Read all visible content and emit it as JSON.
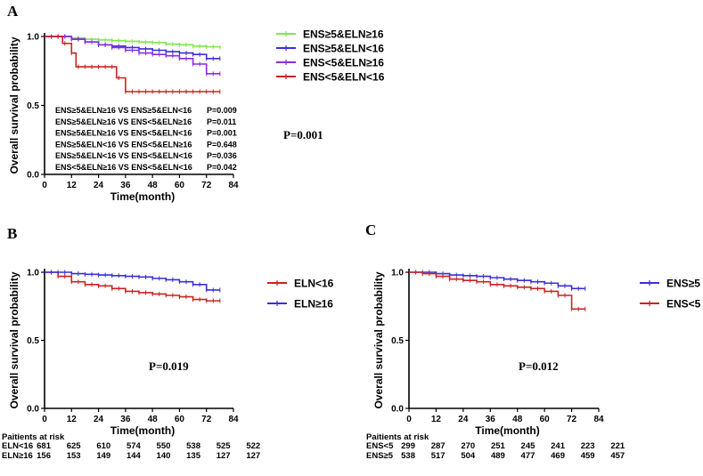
{
  "chart_data": [
    {
      "type": "line",
      "panel": "A",
      "ylabel": "Overall survival probability",
      "xlabel": "Time(month)",
      "xlim": [
        0,
        84
      ],
      "ylim": [
        0,
        1.0
      ],
      "xticks": [
        0,
        12,
        24,
        36,
        48,
        60,
        72,
        84
      ],
      "yticks": [
        0.0,
        0.5,
        1.0
      ],
      "p_value": "P=0.001",
      "legend_position": "right",
      "series": [
        {
          "name": "ENS≥5&ELN≥16",
          "color": "#7ee84a",
          "x": [
            0,
            6,
            12,
            18,
            24,
            30,
            36,
            42,
            48,
            54,
            60,
            66,
            72,
            78
          ],
          "y": [
            1.0,
            1.0,
            0.99,
            0.98,
            0.975,
            0.97,
            0.965,
            0.96,
            0.955,
            0.945,
            0.94,
            0.93,
            0.925,
            0.92
          ]
        },
        {
          "name": "ENS≥5&ELN<16",
          "color": "#3a2fd6",
          "x": [
            0,
            6,
            12,
            18,
            24,
            30,
            36,
            42,
            48,
            54,
            60,
            66,
            72,
            78
          ],
          "y": [
            1.0,
            1.0,
            0.98,
            0.96,
            0.94,
            0.93,
            0.92,
            0.91,
            0.9,
            0.89,
            0.88,
            0.87,
            0.84,
            0.84
          ]
        },
        {
          "name": "ENS<5&ELN≥16",
          "color": "#8a2be2",
          "x": [
            0,
            6,
            12,
            18,
            24,
            30,
            36,
            42,
            48,
            54,
            60,
            66,
            72,
            78
          ],
          "y": [
            1.0,
            1.0,
            0.98,
            0.96,
            0.94,
            0.92,
            0.9,
            0.88,
            0.87,
            0.86,
            0.84,
            0.8,
            0.73,
            0.73
          ]
        },
        {
          "name": "ENS<5&ELN<16",
          "color": "#cc2222",
          "x": [
            0,
            8,
            12,
            14,
            24,
            30,
            32,
            36,
            40,
            48,
            60,
            72,
            78
          ],
          "y": [
            1.0,
            0.95,
            0.88,
            0.78,
            0.78,
            0.78,
            0.7,
            0.6,
            0.6,
            0.6,
            0.6,
            0.6,
            0.6
          ]
        }
      ],
      "comparisons": [
        {
          "label": "ENS≥5&ELN≥16 VS ENS≥5&ELN<16",
          "p": "P=0.009"
        },
        {
          "label": "ENS≥5&ELN≥16 VS ENS<5&ELN≥16",
          "p": "P=0.011"
        },
        {
          "label": "ENS≥5&ELN≥16 VS ENS<5&ELN<16",
          "p": "P=0.001"
        },
        {
          "label": "ENS≥5&ELN<16 VS ENS<5&ELN≥16",
          "p": "P=0.648"
        },
        {
          "label": "ENS≥5&ELN<16 VS ENS<5&ELN<16",
          "p": "P=0.036"
        },
        {
          "label": "ENS<5&ELN≥16 VS ENS<5&ELN<16",
          "p": "P=0.042"
        }
      ]
    },
    {
      "type": "line",
      "panel": "B",
      "ylabel": "Overall survival probability",
      "xlabel": "Time(month)",
      "xlim": [
        0,
        84
      ],
      "ylim": [
        0,
        1.0
      ],
      "xticks": [
        0,
        12,
        24,
        36,
        48,
        60,
        72,
        84
      ],
      "yticks": [
        0.0,
        0.5,
        1.0
      ],
      "p_value": "P=0.019",
      "legend_position": "right",
      "series": [
        {
          "name": "ELN<16",
          "color": "#cc2222",
          "x": [
            0,
            6,
            12,
            18,
            24,
            30,
            36,
            42,
            48,
            54,
            60,
            66,
            72,
            78
          ],
          "y": [
            1.0,
            0.97,
            0.93,
            0.91,
            0.9,
            0.88,
            0.86,
            0.85,
            0.84,
            0.83,
            0.82,
            0.8,
            0.79,
            0.79
          ]
        },
        {
          "name": "ELN≥16",
          "color": "#3a2fd6",
          "x": [
            0,
            6,
            12,
            18,
            24,
            30,
            36,
            42,
            48,
            54,
            60,
            66,
            72,
            78
          ],
          "y": [
            1.0,
            1.0,
            0.99,
            0.985,
            0.98,
            0.975,
            0.97,
            0.965,
            0.955,
            0.945,
            0.93,
            0.91,
            0.87,
            0.87
          ]
        }
      ],
      "risk_table": {
        "title": "Paitients at risk",
        "rows": [
          {
            "label": "ELN<16",
            "values": [
              "681",
              "625",
              "610",
              "574",
              "550",
              "538",
              "525",
              "522"
            ]
          },
          {
            "label": "ELN≥16",
            "values": [
              "156",
              "153",
              "149",
              "144",
              "140",
              "135",
              "127",
              "127"
            ]
          }
        ]
      }
    },
    {
      "type": "line",
      "panel": "C",
      "ylabel": "Overall survival probability",
      "xlabel": "Time(month)",
      "xlim": [
        0,
        84
      ],
      "ylim": [
        0,
        1.0
      ],
      "xticks": [
        0,
        12,
        24,
        36,
        48,
        60,
        72,
        84
      ],
      "yticks": [
        0.0,
        0.5,
        1.0
      ],
      "p_value": "P=0.012",
      "legend_position": "right",
      "series": [
        {
          "name": "ENS≥5",
          "color": "#3a2fd6",
          "x": [
            0,
            6,
            12,
            18,
            24,
            30,
            36,
            42,
            48,
            54,
            60,
            66,
            72,
            78
          ],
          "y": [
            1.0,
            1.0,
            0.99,
            0.98,
            0.975,
            0.97,
            0.96,
            0.95,
            0.94,
            0.93,
            0.92,
            0.9,
            0.88,
            0.88
          ]
        },
        {
          "name": "ENS<5",
          "color": "#cc2222",
          "x": [
            0,
            6,
            12,
            18,
            24,
            30,
            36,
            42,
            48,
            54,
            60,
            66,
            72,
            78
          ],
          "y": [
            1.0,
            0.99,
            0.97,
            0.95,
            0.94,
            0.93,
            0.91,
            0.9,
            0.89,
            0.88,
            0.86,
            0.83,
            0.73,
            0.73
          ]
        }
      ],
      "risk_table": {
        "title": "Paitients at risk",
        "rows": [
          {
            "label": "ENS<5",
            "values": [
              "299",
              "287",
              "270",
              "251",
              "245",
              "241",
              "223",
              "221"
            ]
          },
          {
            "label": "ENS≥5",
            "values": [
              "538",
              "517",
              "504",
              "489",
              "477",
              "469",
              "459",
              "457"
            ]
          }
        ]
      }
    }
  ]
}
